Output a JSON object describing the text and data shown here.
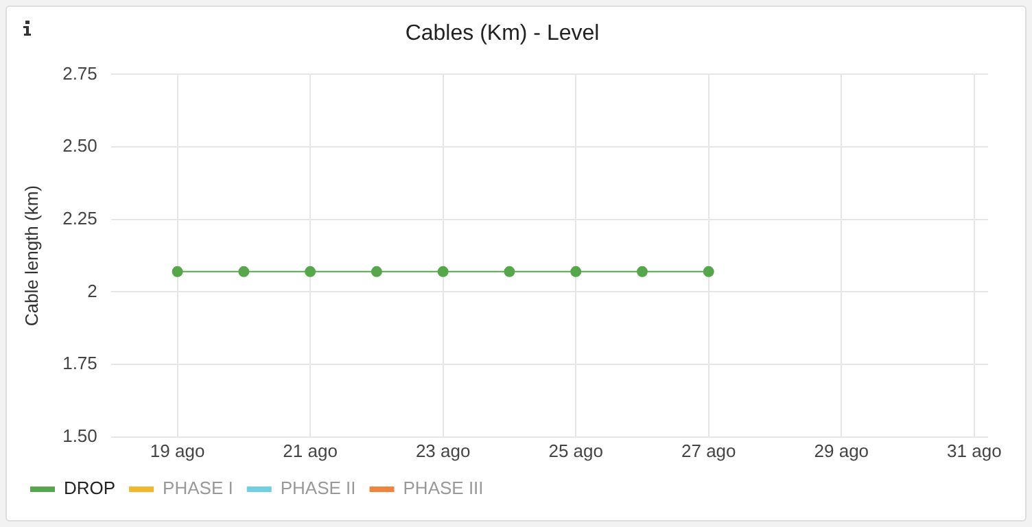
{
  "chart_data": {
    "type": "line",
    "title": "Cables (Km) - Level",
    "ylabel": "Cable length (km)",
    "x": [
      "--08-19",
      "--08-20",
      "--08-21",
      "--08-22",
      "--08-23",
      "--08-24",
      "--08-25",
      "--08-26",
      "--08-27"
    ],
    "series": [
      {
        "name": "DROP",
        "color": "#56a64b",
        "values": [
          2.07,
          2.07,
          2.07,
          2.07,
          2.07,
          2.07,
          2.07,
          2.07,
          2.07
        ]
      },
      {
        "name": "PHASE I",
        "color": "#f2b82d",
        "values": [
          null,
          null,
          null,
          null,
          null,
          null,
          null,
          null,
          null
        ]
      },
      {
        "name": "PHASE II",
        "color": "#6ed0e0",
        "values": [
          null,
          null,
          null,
          null,
          null,
          null,
          null,
          null,
          null
        ]
      },
      {
        "name": "PHASE III",
        "color": "#ef843c",
        "values": [
          null,
          null,
          null,
          null,
          null,
          null,
          null,
          null,
          null
        ]
      }
    ],
    "xlim": [
      "--08-18",
      "--08-31T05:00"
    ],
    "xticks": [
      {
        "value": "--08-19",
        "label": "19 ago"
      },
      {
        "value": "--08-21",
        "label": "21 ago"
      },
      {
        "value": "--08-23",
        "label": "23 ago"
      },
      {
        "value": "--08-25",
        "label": "25 ago"
      },
      {
        "value": "--08-27",
        "label": "27 ago"
      },
      {
        "value": "--08-29",
        "label": "29 ago"
      },
      {
        "value": "--08-31",
        "label": "31 ago"
      }
    ],
    "ylim": [
      1.5,
      2.75
    ],
    "yticks": [
      {
        "value": 1.5,
        "label": "1.50"
      },
      {
        "value": 1.75,
        "label": "1.75"
      },
      2,
      {
        "value": 2.25,
        "label": "2.25"
      },
      {
        "value": 2.5,
        "label": "2.50"
      },
      {
        "value": 2.75,
        "label": "2.75"
      }
    ],
    "grid": true,
    "legend": "bottom left",
    "marker": "circle",
    "line_style": "solid"
  }
}
